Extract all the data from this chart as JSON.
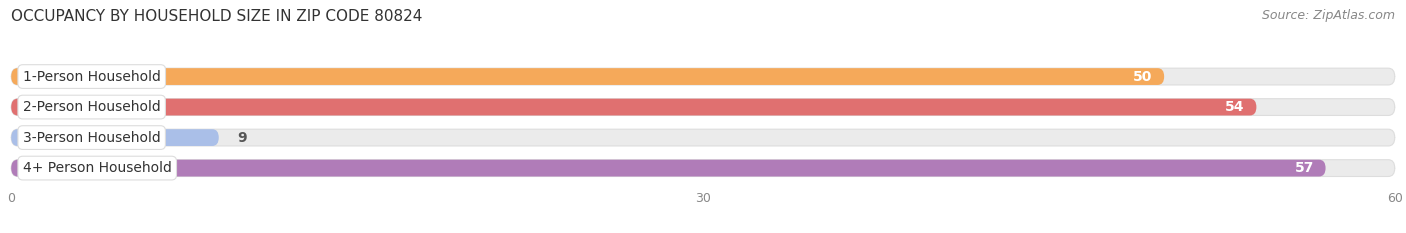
{
  "title": "OCCUPANCY BY HOUSEHOLD SIZE IN ZIP CODE 80824",
  "source": "Source: ZipAtlas.com",
  "categories": [
    "1-Person Household",
    "2-Person Household",
    "3-Person Household",
    "4+ Person Household"
  ],
  "values": [
    50,
    54,
    9,
    57
  ],
  "bar_colors": [
    "#F5A95A",
    "#E07070",
    "#AABFE8",
    "#B07CB8"
  ],
  "bar_bg_color": "#EBEBEB",
  "xlim": [
    0,
    60
  ],
  "xticks": [
    0,
    30,
    60
  ],
  "title_fontsize": 11,
  "source_fontsize": 9,
  "label_fontsize": 10,
  "value_fontsize": 10,
  "figsize": [
    14.06,
    2.33
  ]
}
